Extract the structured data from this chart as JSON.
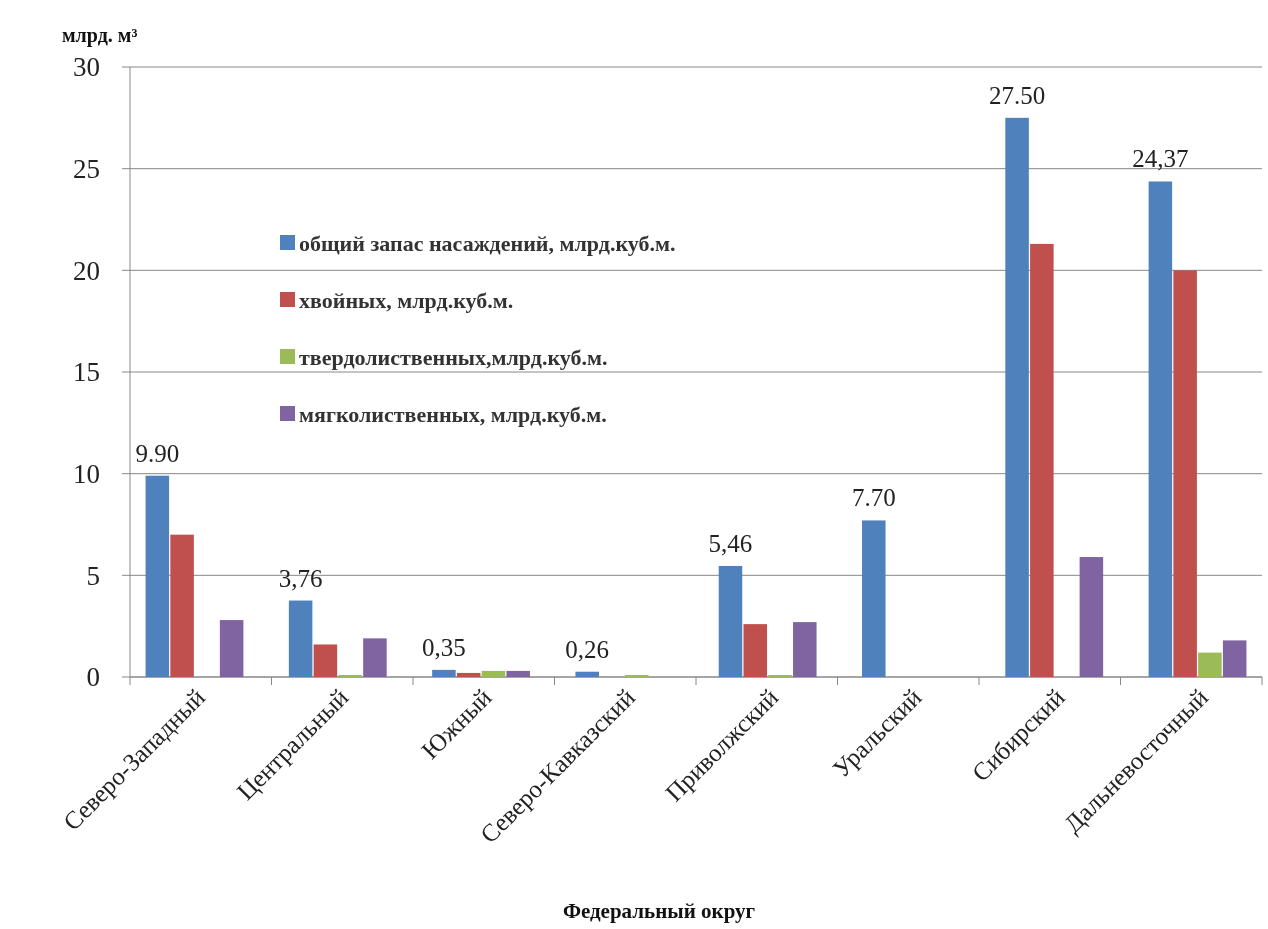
{
  "chart_data": {
    "type": "bar",
    "ylabel": "млрд. м³",
    "xlabel": "Федеральный округ",
    "categories": [
      "Северо-Западный",
      "Центральный",
      "Южный",
      "Северо-Кавказский",
      "Приволжский",
      "Уральский",
      "Сибирский",
      "Дальневосточный"
    ],
    "series": [
      {
        "name": "общий запас насаждений, млрд.куб.м.",
        "color": "#4f81bd",
        "values": [
          9.9,
          3.76,
          0.35,
          0.26,
          5.46,
          7.7,
          27.5,
          24.37
        ],
        "value_labels": [
          "9.90",
          "3,76",
          "0,35",
          "0,26",
          "5,46",
          "7.70",
          "27.50",
          "24,37"
        ]
      },
      {
        "name": "хвойных, млрд.куб.м.",
        "color": "#c0504d",
        "values": [
          7.0,
          1.6,
          0.2,
          null,
          2.6,
          null,
          21.3,
          20.0
        ]
      },
      {
        "name": "твердолиственных,млрд.куб.м.",
        "color": "#9bbb59",
        "values": [
          null,
          0.1,
          0.3,
          0.1,
          0.1,
          null,
          null,
          1.2
        ]
      },
      {
        "name": "мягколиственных, млрд.куб.м.",
        "color": "#8064a2",
        "values": [
          2.8,
          1.9,
          0.3,
          null,
          2.7,
          null,
          5.9,
          1.8
        ]
      }
    ],
    "ylim": [
      0,
      30
    ],
    "yticks": [
      0,
      5,
      10,
      15,
      20,
      25,
      30
    ],
    "grid": "y",
    "legend": "top left"
  }
}
